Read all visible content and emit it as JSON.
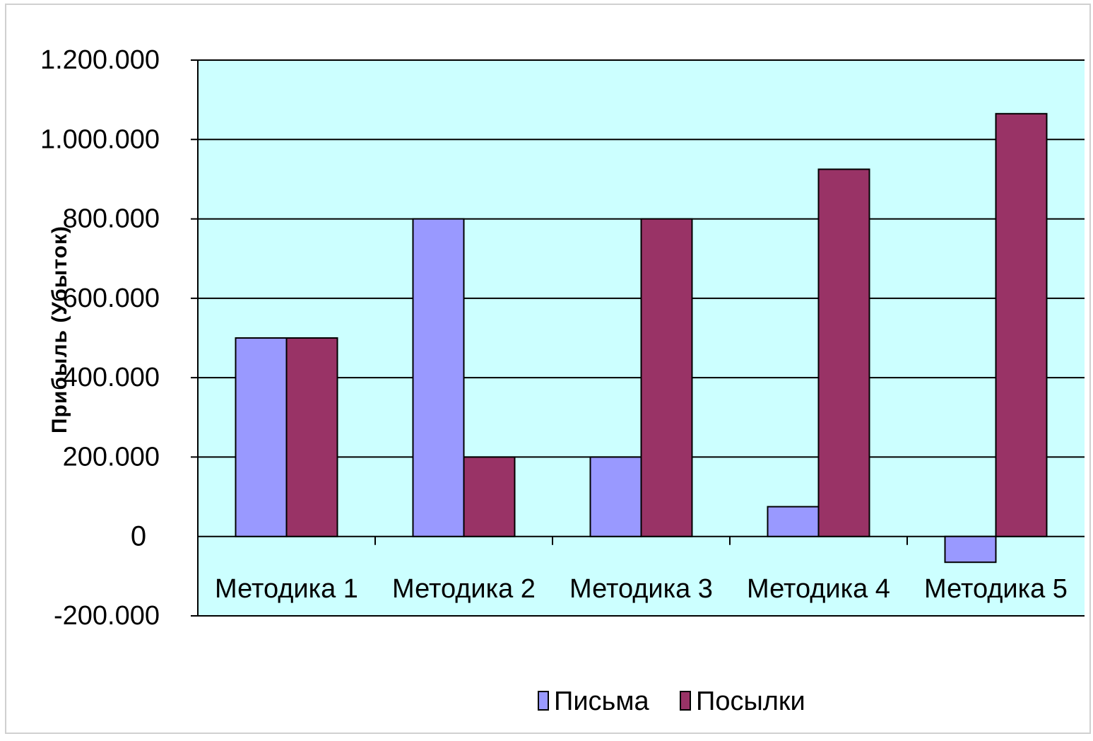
{
  "chart_data": {
    "type": "bar",
    "title": "",
    "xlabel": "",
    "ylabel": "Прибыль  (Убыток)",
    "categories": [
      "Методика 1",
      "Методика 2",
      "Методика 3",
      "Методика 4",
      "Методика 5"
    ],
    "series": [
      {
        "name": "Письма",
        "values": [
          500000,
          800000,
          200000,
          75000,
          -65000
        ],
        "color": "#9999ff"
      },
      {
        "name": "Посылки",
        "values": [
          500000,
          200000,
          800000,
          925000,
          1065000
        ],
        "color": "#993366"
      }
    ],
    "ylim": [
      -200000,
      1200000
    ],
    "yticks": [
      {
        "value": 1200000,
        "label": "1.200.000"
      },
      {
        "value": 1000000,
        "label": "1.000.000"
      },
      {
        "value": 800000,
        "label": "800.000"
      },
      {
        "value": 600000,
        "label": "600.000"
      },
      {
        "value": 400000,
        "label": "400.000"
      },
      {
        "value": 200000,
        "label": "200.000"
      },
      {
        "value": 0,
        "label": "0"
      },
      {
        "value": -200000,
        "label": "-200.000"
      }
    ],
    "grid": true,
    "legend": "bottom",
    "plot_background": "#ccffff"
  }
}
